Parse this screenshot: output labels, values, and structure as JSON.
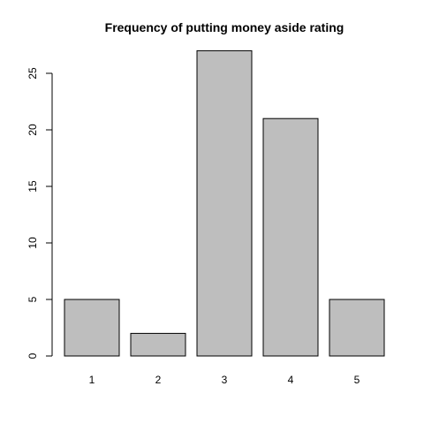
{
  "chart_data": {
    "type": "bar",
    "title": "Frequency of putting money aside rating",
    "categories": [
      "1",
      "2",
      "3",
      "4",
      "5"
    ],
    "values": [
      5,
      2,
      27,
      21,
      5
    ],
    "y_ticks": [
      0,
      5,
      10,
      15,
      20,
      25
    ],
    "xlabel": "",
    "ylabel": "",
    "ylim": [
      0,
      28
    ],
    "grid": false,
    "legend": "none",
    "colors": {
      "bar_fill": "#bebebe",
      "bar_stroke": "#000000",
      "background": "#ffffff"
    }
  }
}
